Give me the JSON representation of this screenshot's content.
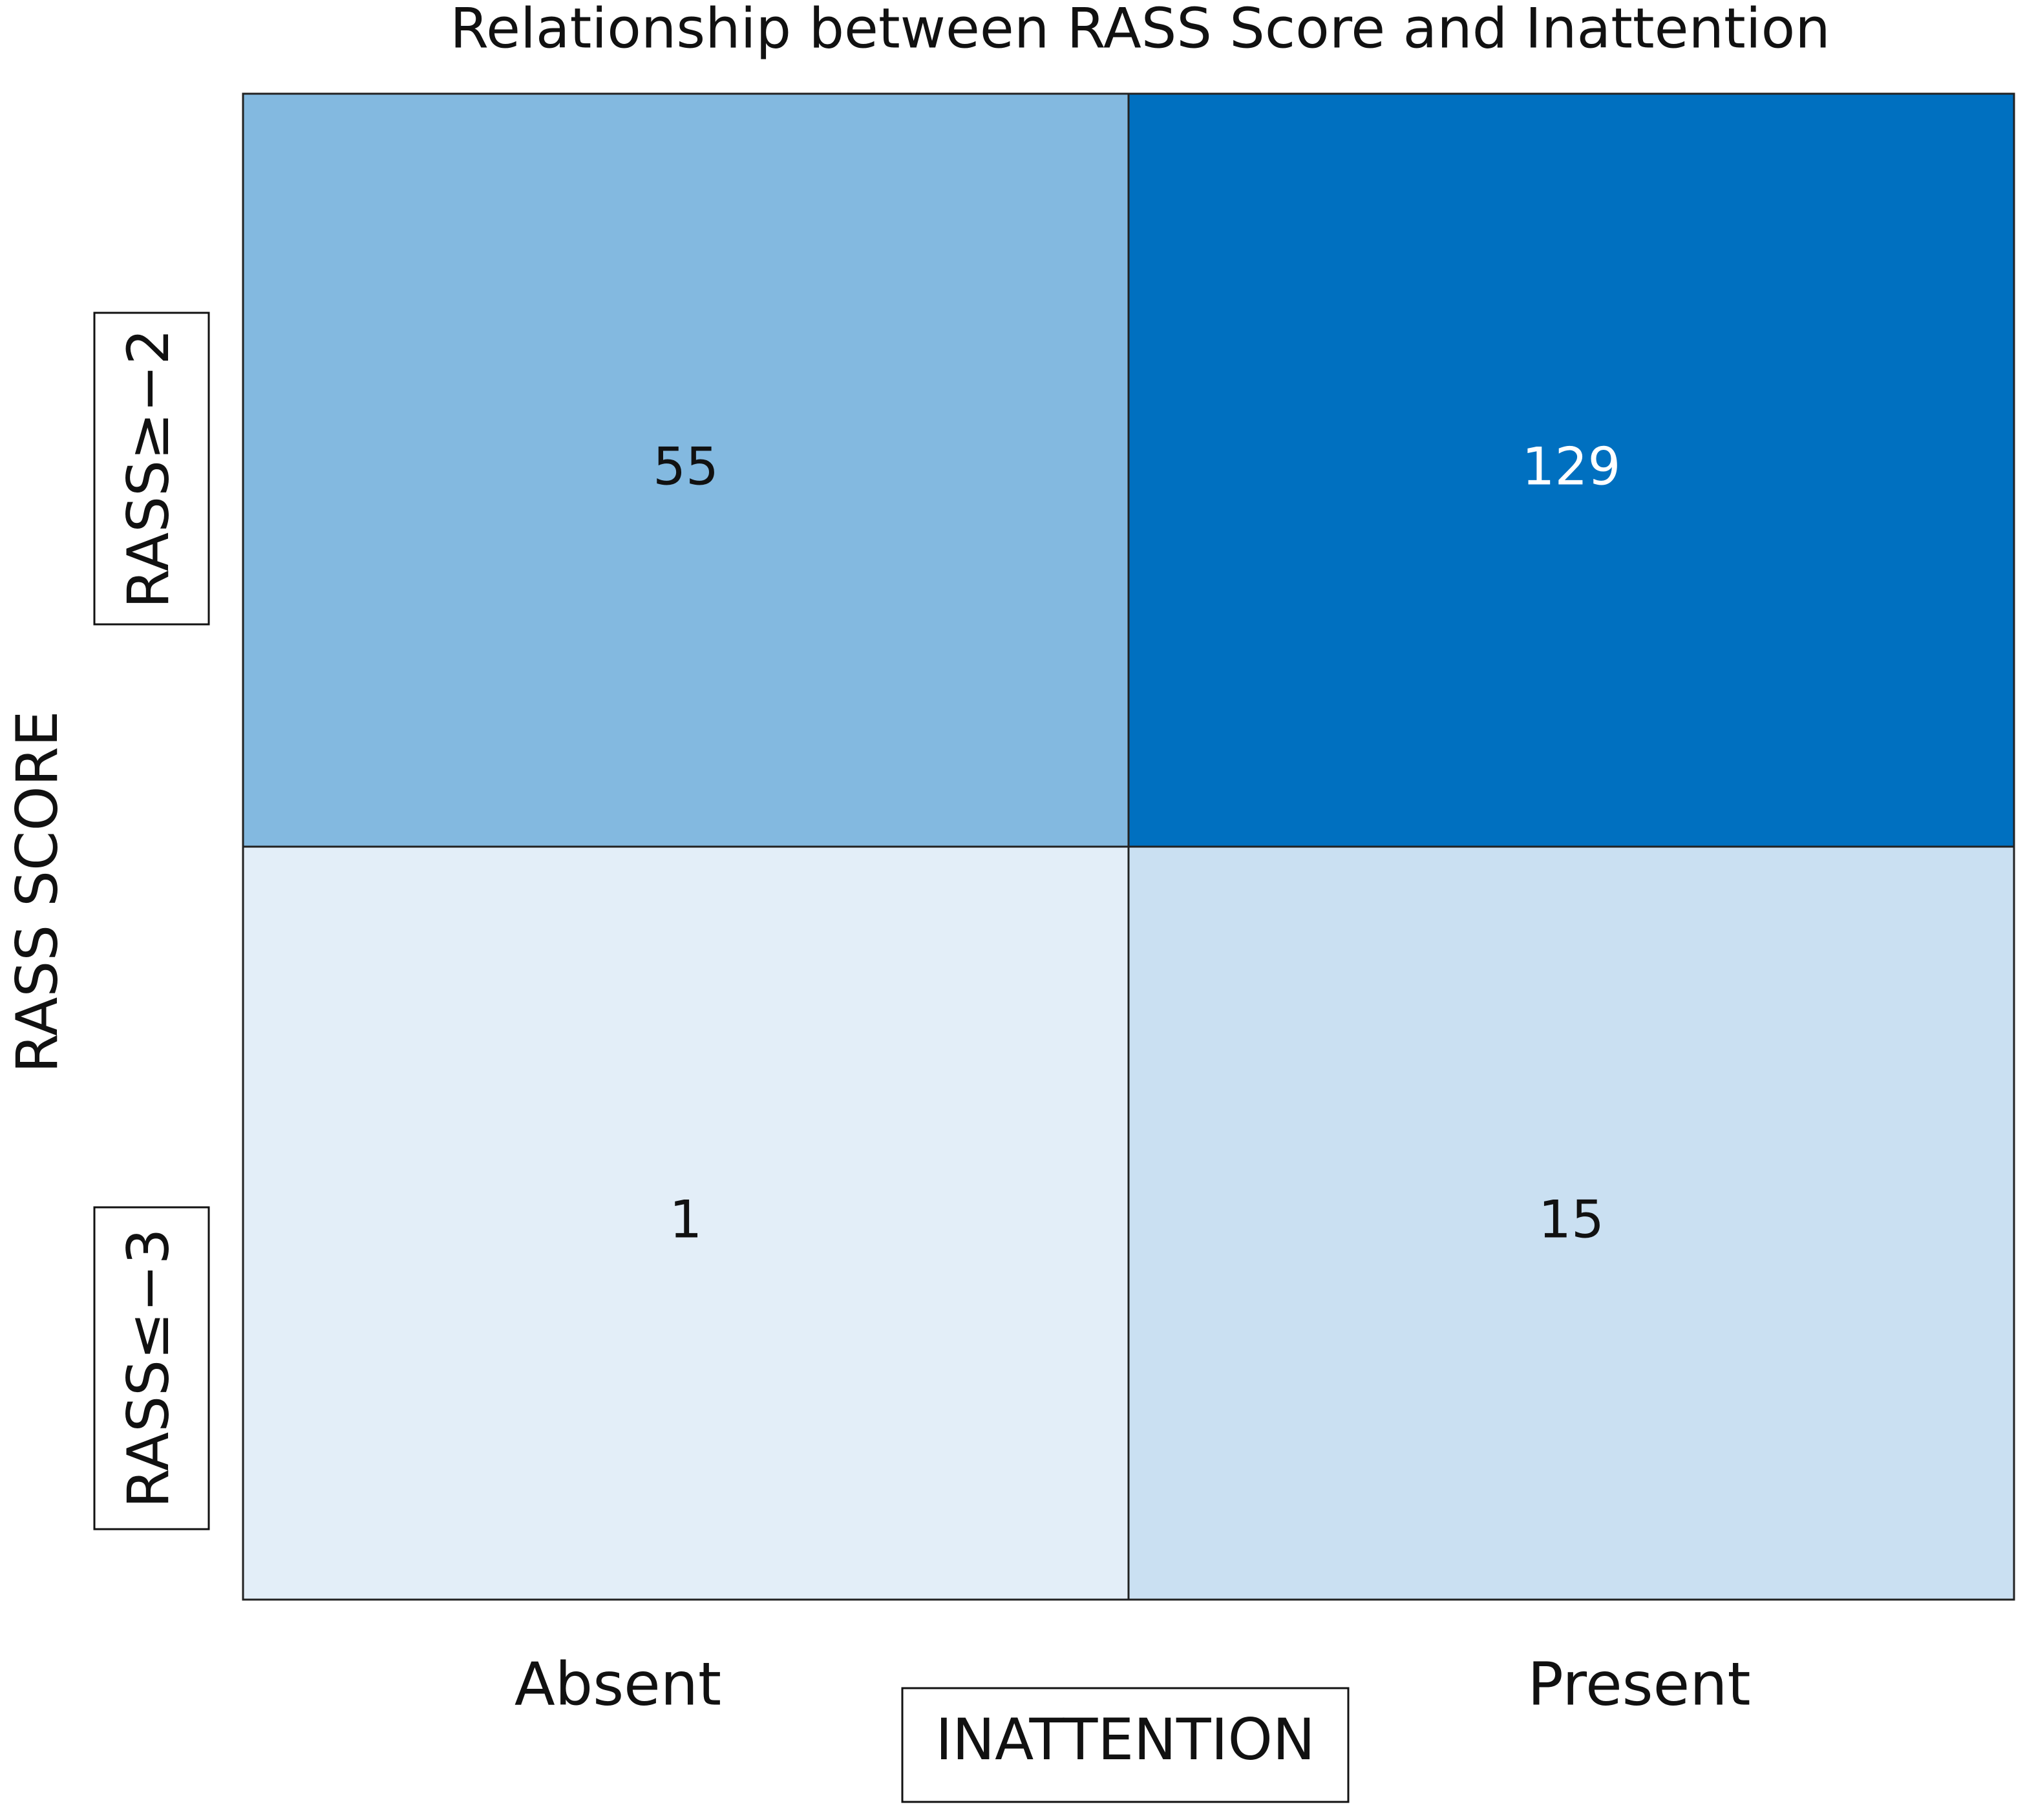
{
  "chart_data": {
    "type": "heatmap",
    "title": "Relationship between RASS Score and Inattention",
    "x_label": "INATTENTION",
    "y_label": "RASS SCORE",
    "x_categories": [
      "Absent",
      "Present"
    ],
    "y_categories": [
      "RASS≥−2",
      "RASS≤−3"
    ],
    "values": [
      [
        55,
        129
      ],
      [
        1,
        15
      ]
    ],
    "colormap": [
      "#e3eef8",
      "#0070c0"
    ]
  }
}
